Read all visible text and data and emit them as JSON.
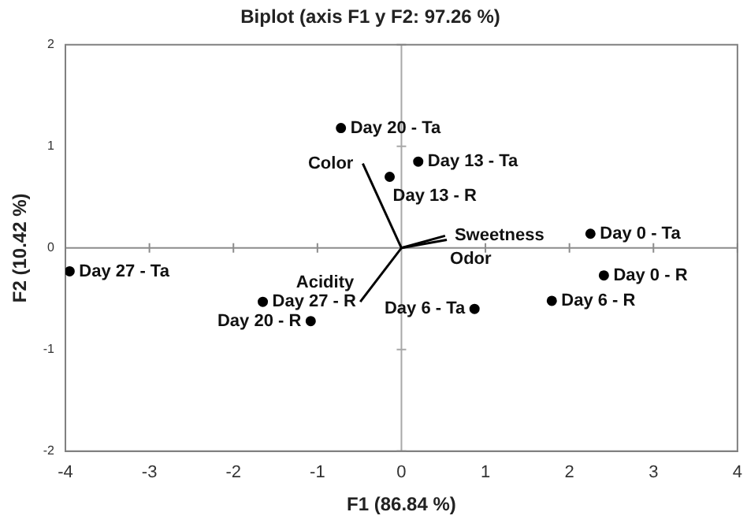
{
  "chart_data": {
    "type": "scatter",
    "title": "Biplot (axis F1 y F2: 97.26 %)",
    "xlabel": "F1 (86.84 %)",
    "ylabel": "F2 (10.42 %)",
    "series": [
      {
        "color": "#000000",
        "x": [
          -0.72,
          0.2,
          -0.14,
          2.25,
          -3.95,
          2.41,
          -1.65,
          1.79,
          0.87,
          -1.08
        ],
        "values": [
          1.18,
          0.85,
          0.7,
          0.14,
          -0.23,
          -0.27,
          -0.53,
          -0.52,
          -0.6,
          -0.72
        ]
      },
      {
        "type": "line",
        "color": "#000000",
        "marker": "none",
        "x": [
          0,
          -0.46
        ],
        "values": [
          0,
          0.83
        ]
      },
      {
        "type": "line",
        "color": "#000000",
        "marker": "none",
        "x": [
          0,
          0.52
        ],
        "values": [
          0,
          0.12
        ]
      },
      {
        "type": "line",
        "color": "#000000",
        "marker": "none",
        "x": [
          0,
          0.54
        ],
        "values": [
          0,
          0.08
        ]
      },
      {
        "type": "line",
        "color": "#000000",
        "marker": "none",
        "x": [
          0,
          -0.49
        ],
        "values": [
          0,
          -0.53
        ]
      }
    ],
    "annotations": [
      {
        "text": "Day 20 - Ta",
        "x": -0.72,
        "y": 1.18
      },
      {
        "text": "Day 13 - Ta",
        "x": 0.2,
        "y": 0.85
      },
      {
        "text": "Day 13 - R",
        "x": -0.14,
        "y": 0.7
      },
      {
        "text": "Day 0 - Ta",
        "x": 2.25,
        "y": 0.14
      },
      {
        "text": "Day 27 - Ta",
        "x": -3.95,
        "y": -0.23
      },
      {
        "text": "Day 0 - R",
        "x": 2.41,
        "y": -0.27
      },
      {
        "text": "Day 27 - R",
        "x": -1.65,
        "y": -0.53
      },
      {
        "text": "Day 6 - R",
        "x": 1.79,
        "y": -0.52
      },
      {
        "text": "Day 6 - Ta",
        "x": 0.87,
        "y": -0.6
      },
      {
        "text": "Day 20 - R",
        "x": -1.08,
        "y": -0.72
      },
      {
        "text": "Color",
        "x": -0.46,
        "y": 0.83
      },
      {
        "text": "Sweetness",
        "x": 0.52,
        "y": 0.12
      },
      {
        "text": "Odor",
        "x": 0.54,
        "y": 0.08
      },
      {
        "text": "Acidity",
        "x": -0.49,
        "y": -0.53
      }
    ],
    "ref_lines": [
      {
        "axis": "x",
        "value": 0,
        "color": "#a8a8a8"
      },
      {
        "axis": "y",
        "value": 0,
        "color": "#8c8c8c"
      }
    ],
    "xlim": [
      -4,
      4
    ],
    "xticks": [
      -4,
      -3,
      -2,
      -1,
      0,
      1,
      2,
      3,
      4
    ],
    "ylim": [
      -2,
      2
    ],
    "yticks": [
      -2,
      -1,
      0,
      1,
      2
    ],
    "grid": false,
    "legend": false
  }
}
